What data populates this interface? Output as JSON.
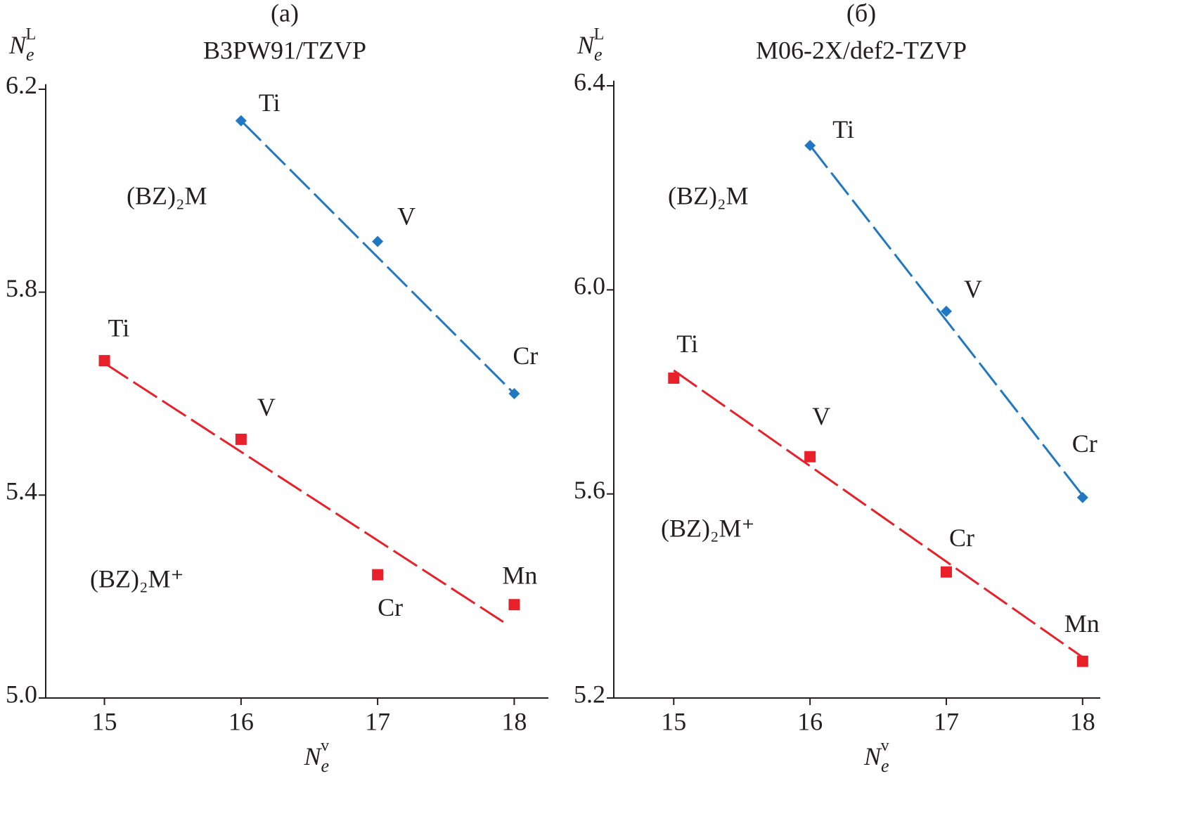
{
  "chart_data": [
    {
      "type": "scatter",
      "panel": "(a)",
      "title": "B3PW91/TZVP",
      "ylabel": "N",
      "ylabel_sub": "e",
      "ylabel_sup": "L",
      "xlabel": "N",
      "xlabel_sub": "e",
      "xlabel_sup": "v",
      "xlim": [
        14.57,
        18.25
      ],
      "ylim": [
        5.0,
        6.21
      ],
      "xticks": [
        15,
        16,
        17,
        18
      ],
      "yticks": [
        {
          "value": 5.0,
          "label": "5.0"
        },
        5.4,
        5.8,
        6.2
      ],
      "series": [
        {
          "name": "(BZ)₂M",
          "color": "#1f78c1",
          "marker": "diamond",
          "x": [
            16,
            17,
            18
          ],
          "values": [
            6.138,
            5.9,
            5.6
          ],
          "point_labels": [
            "Ti",
            "V",
            "Cr"
          ],
          "fit": {
            "x": [
              16,
              18
            ],
            "values": [
              6.138,
              5.6
            ]
          }
        },
        {
          "name": "(BZ)₂M⁺",
          "color": "#e8202a",
          "marker": "square",
          "x": [
            15,
            16,
            17,
            18
          ],
          "values": [
            5.665,
            5.51,
            5.243,
            5.184
          ],
          "point_labels": [
            "Ti",
            "V",
            "Cr",
            "Mn"
          ],
          "fit": {
            "x": [
              15,
              17.92
            ],
            "values": [
              5.66,
              5.15
            ]
          }
        }
      ]
    },
    {
      "type": "scatter",
      "panel": "(б)",
      "title": "M06-2X/def2-TZVP",
      "ylabel": "N",
      "ylabel_sub": "e",
      "ylabel_sup": "L",
      "xlabel": "N",
      "xlabel_sub": "e",
      "xlabel_sup": "v",
      "xlim": [
        14.56,
        18.13
      ],
      "ylim": [
        5.2,
        6.41
      ],
      "xticks": [
        15,
        16,
        17,
        18
      ],
      "yticks": [
        5.2,
        5.6,
        {
          "value": 6.0,
          "label": "6.0"
        },
        6.4
      ],
      "series": [
        {
          "name": "(BZ)₂M",
          "color": "#1f78c1",
          "marker": "diamond",
          "x": [
            16,
            17,
            18
          ],
          "values": [
            6.283,
            5.958,
            5.593
          ],
          "point_labels": [
            "Ti",
            "V",
            "Cr"
          ],
          "fit": {
            "x": [
              16,
              18
            ],
            "values": [
              6.283,
              5.597
            ]
          }
        },
        {
          "name": "(BZ)₂M⁺",
          "color": "#e8202a",
          "marker": "square",
          "x": [
            15,
            16,
            17,
            18
          ],
          "values": [
            5.827,
            5.673,
            5.447,
            5.272
          ],
          "point_labels": [
            "Ti",
            "V",
            "Cr",
            "Mn"
          ],
          "fit": {
            "x": [
              15,
              18
            ],
            "values": [
              5.842,
              5.28
            ]
          }
        }
      ]
    }
  ]
}
